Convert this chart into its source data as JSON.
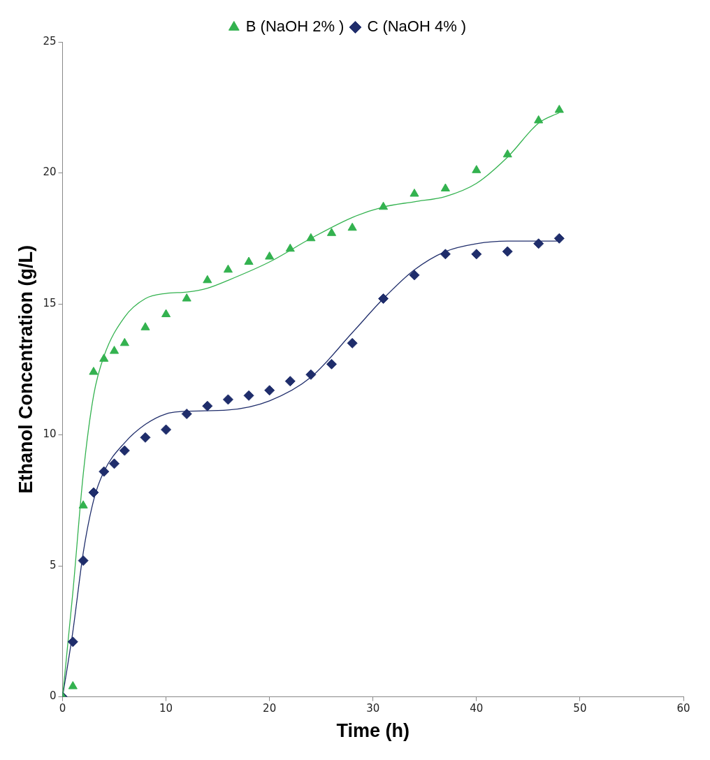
{
  "chart_data": {
    "type": "scatter",
    "xlabel": "Time (h)",
    "ylabel": "Ethanol Concentration (g/L)",
    "xlim": [
      0,
      60
    ],
    "xticks": [
      0,
      10,
      20,
      30,
      40,
      50,
      60
    ],
    "ylim": [
      0,
      25
    ],
    "yticks": [
      0,
      5,
      10,
      15,
      20,
      25
    ],
    "grid": false,
    "legend": "top",
    "series": [
      {
        "name": "B (NaOH 2% )",
        "type": "scatter",
        "marker": "triangle",
        "color": "#33b24f",
        "x": [
          0,
          1,
          2,
          3,
          4,
          5,
          6,
          8,
          10,
          12,
          14,
          16,
          18,
          20,
          22,
          24,
          26,
          28,
          31,
          34,
          37,
          40,
          43,
          46,
          48
        ],
        "values": [
          0,
          0.4,
          7.3,
          12.4,
          12.9,
          13.2,
          13.5,
          14.1,
          14.6,
          15.2,
          15.9,
          16.3,
          16.6,
          16.8,
          17.1,
          17.5,
          17.7,
          17.9,
          18.7,
          19.2,
          19.4,
          20.1,
          20.7,
          22.0,
          22.4
        ]
      },
      {
        "name": "C (NaOH 4% )",
        "type": "scatter",
        "marker": "diamond",
        "color": "#1f2d6b",
        "x": [
          0,
          1,
          2,
          3,
          4,
          5,
          6,
          8,
          10,
          12,
          14,
          16,
          18,
          20,
          22,
          24,
          26,
          28,
          31,
          34,
          37,
          40,
          43,
          46,
          48
        ],
        "values": [
          0,
          2.1,
          5.2,
          7.8,
          8.6,
          8.9,
          9.4,
          9.9,
          10.2,
          10.8,
          11.1,
          11.35,
          11.5,
          11.7,
          12.05,
          12.3,
          12.7,
          13.5,
          15.2,
          16.1,
          16.9,
          16.9,
          17.0,
          17.3,
          17.5
        ]
      },
      {
        "type": "line",
        "marker": "none",
        "color": "#33b24f",
        "x": [
          0,
          1,
          2,
          3,
          4,
          6,
          8,
          10,
          12,
          14,
          16,
          20,
          24,
          28,
          31,
          34,
          37,
          40,
          43,
          46,
          48
        ],
        "values": [
          0,
          4,
          8.5,
          11.5,
          13,
          14.5,
          15.2,
          15.4,
          15.45,
          15.6,
          15.9,
          16.6,
          17.5,
          18.3,
          18.7,
          18.9,
          19.1,
          19.6,
          20.6,
          21.9,
          22.3
        ]
      },
      {
        "type": "line",
        "marker": "none",
        "color": "#1f2d6b",
        "x": [
          0,
          1,
          2,
          3,
          4,
          6,
          8,
          10,
          12,
          16,
          20,
          24,
          28,
          31,
          34,
          37,
          40,
          43,
          46,
          48
        ],
        "values": [
          0,
          2.5,
          5.5,
          7.5,
          8.6,
          9.7,
          10.4,
          10.8,
          10.9,
          10.95,
          11.3,
          12.2,
          13.9,
          15.2,
          16.3,
          17.0,
          17.3,
          17.4,
          17.4,
          17.4
        ]
      }
    ]
  }
}
